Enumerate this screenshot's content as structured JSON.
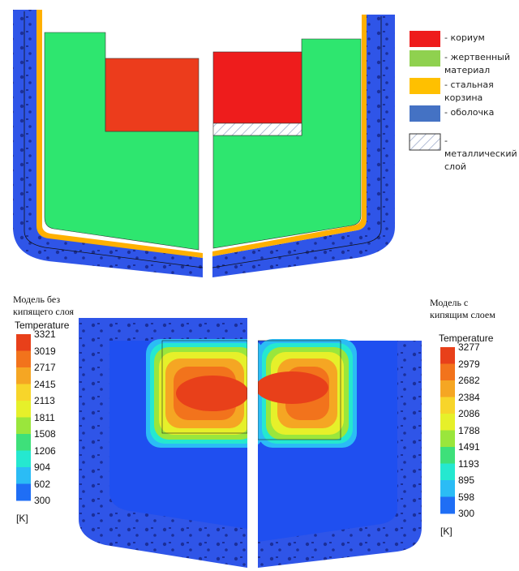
{
  "legend": {
    "items": [
      {
        "label": "- кориум",
        "color": "#ee1c1c"
      },
      {
        "label": "-  жертвенный материал",
        "color": "#8fd14f"
      },
      {
        "label": "-   стальная корзина",
        "color": "#ffc000"
      },
      {
        "label": "- оболочка",
        "color": "#4472c4"
      },
      {
        "label": "- металлический слой",
        "color": "hatch"
      }
    ]
  },
  "left_model": {
    "label": "Модель без кипящего слоя",
    "colorbar": {
      "title": "Temperature",
      "unit": "[K]",
      "ticks": [
        3321,
        3019,
        2717,
        2415,
        2113,
        1811,
        1508,
        1206,
        904,
        602,
        300
      ]
    }
  },
  "right_model": {
    "label": "Модель с кипящим слоем",
    "colorbar": {
      "title": "Temperature",
      "unit": "[K]",
      "ticks": [
        3277,
        2979,
        2682,
        2384,
        2086,
        1788,
        1491,
        1193,
        895,
        598,
        300
      ]
    }
  },
  "band_colors": [
    "#e8401a",
    "#f2731c",
    "#f5a623",
    "#f7d52a",
    "#e6f02a",
    "#9ae63c",
    "#3ee07a",
    "#25e8d0",
    "#2bbcf5",
    "#1f6ef5"
  ]
}
